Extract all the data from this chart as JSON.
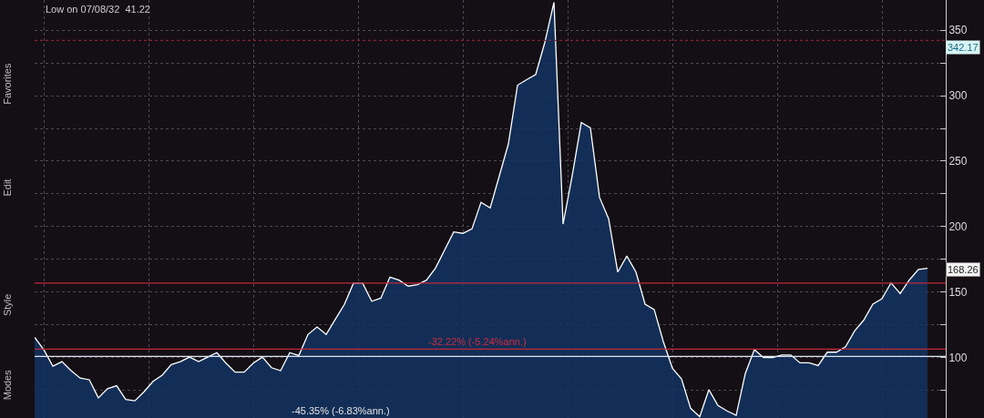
{
  "chart_data": {
    "type": "area",
    "categories": [
      null,
      null,
      null,
      null,
      null,
      null,
      null,
      null,
      null,
      null,
      null,
      null,
      null,
      null,
      null,
      null,
      null,
      null,
      null,
      null,
      null,
      null,
      null,
      null,
      null,
      null,
      null,
      null,
      null,
      null,
      null,
      null,
      null,
      null,
      null,
      null,
      null,
      null,
      null,
      null,
      null,
      null,
      null,
      null,
      null,
      null,
      null,
      null,
      null,
      null,
      null,
      null,
      null,
      null,
      null,
      null,
      null,
      null,
      null,
      null,
      null,
      null,
      null,
      null,
      null,
      null,
      null,
      null,
      null,
      null,
      null,
      null,
      null,
      null,
      null,
      null,
      null,
      null,
      null,
      null,
      null,
      null,
      null,
      null,
      null,
      null,
      null,
      null,
      null,
      null,
      null,
      null,
      null,
      null,
      null,
      null,
      null,
      null,
      null
    ],
    "series": [
      {
        "color": "#ffffff",
        "values": [
          115.5,
          106.2,
          93.6,
          97,
          90.1,
          84.4,
          83.2,
          69.4,
          76.3,
          78.6,
          68.2,
          67.1,
          74,
          82,
          86.7,
          94.8,
          97,
          100.5,
          97,
          100.5,
          103.9,
          95.9,
          89,
          89,
          95.9,
          100.5,
          92.4,
          90.1,
          103.9,
          101.7,
          117.7,
          123.5,
          117.7,
          129.3,
          140.7,
          156.9,
          156.9,
          143.1,
          145.4,
          161.5,
          159.2,
          154.6,
          155.7,
          159.2,
          168.4,
          182.2,
          196,
          194.9,
          198.3,
          218.6,
          214.4,
          238.7,
          263.2,
          308,
          312.2,
          316.2,
          340.7,
          371.2,
          202,
          238.7,
          279.5,
          275.4,
          222.4,
          206.1,
          165.4,
          177.6,
          165.4,
          140.9,
          136.8,
          112.4,
          92,
          83.8,
          61.4,
          55,
          75.6,
          63.5,
          59.4,
          56,
          87.9,
          106.2,
          100.1,
          100.1,
          102.1,
          102.1,
          96.1,
          96.1,
          94,
          104.2,
          104.2,
          108.3,
          120.5,
          128.7,
          140.9,
          145,
          157.2,
          149,
          159.3,
          167.4,
          168.26
        ]
      }
    ],
    "ylim": [
      54,
      373
    ],
    "yticks": [
      {
        "value": 75,
        "label": null
      },
      100,
      {
        "value": 125,
        "label": null
      },
      150,
      {
        "value": 175,
        "label": null
      },
      200,
      {
        "value": 225,
        "label": null
      },
      250,
      {
        "value": 275,
        "label": null
      },
      300,
      {
        "value": 325,
        "label": null
      },
      350
    ],
    "grid": true,
    "tick_labels": "y",
    "ref_lines": [
      {
        "axis": "y",
        "value": 342.17,
        "label": "342.17",
        "color": "#8a2232",
        "line_style": "dotted"
      },
      {
        "axis": "y",
        "value": 157,
        "color": "#c0283c",
        "line_style": "solid"
      },
      {
        "axis": "y",
        "value": 106.6,
        "color": "#c0283c",
        "line_style": "solid"
      },
      {
        "axis": "y",
        "value": 101,
        "color": "#dde4ee",
        "line_style": "solid"
      }
    ],
    "annotations": [
      "Low on 07/08/32  41.22",
      "-32.22% (-5.24%ann.)",
      "-45.35% (-6.83%ann.)",
      "168.26",
      "Favorites",
      "Edit",
      "Style",
      "Modes"
    ]
  }
}
